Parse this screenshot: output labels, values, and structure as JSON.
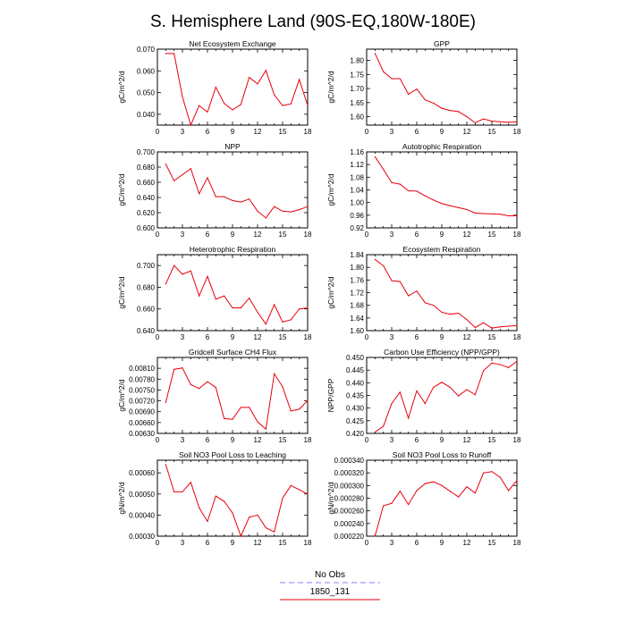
{
  "page": {
    "title": "S. Hemisphere Land (90S-EQ,180W-180E)"
  },
  "colors": {
    "obs": "#8080ff",
    "model": "#e8000b",
    "axis": "#000000"
  },
  "legend": {
    "items": [
      {
        "label": "No Obs",
        "style": "dashed"
      },
      {
        "label": "1850_131",
        "style": "solid"
      }
    ]
  },
  "chart_data": [
    {
      "type": "line",
      "title": "Net Ecosystem Exchange",
      "ylabel": "gC/m^2/d",
      "xlim": [
        0,
        18
      ],
      "ylim": [
        0.035,
        0.07
      ],
      "xticks": [
        0,
        3,
        6,
        9,
        12,
        15,
        18
      ],
      "yticks": [
        "0.040",
        "0.050",
        "0.060",
        "0.070"
      ],
      "series": [
        {
          "x": [
            1,
            2,
            3,
            4,
            5,
            6,
            7,
            8,
            9,
            10,
            11,
            12,
            13,
            14,
            15,
            16,
            17,
            18
          ],
          "values": [
            0.068,
            0.068,
            0.048,
            0.035,
            0.044,
            0.041,
            0.0525,
            0.045,
            0.042,
            0.0445,
            0.057,
            0.054,
            0.0602,
            0.049,
            0.044,
            0.0448,
            0.056,
            0.044
          ]
        }
      ]
    },
    {
      "type": "line",
      "title": "GPP",
      "ylabel": "gC/m^2/d",
      "xlim": [
        0,
        18
      ],
      "ylim": [
        1.57,
        1.84
      ],
      "xticks": [
        0,
        3,
        6,
        9,
        12,
        15,
        18
      ],
      "yticks": [
        "1.60",
        "1.65",
        "1.70",
        "1.75",
        "1.80"
      ],
      "series": [
        {
          "x": [
            1,
            2,
            3,
            4,
            5,
            6,
            7,
            8,
            9,
            10,
            11,
            12,
            13,
            14,
            15,
            16,
            17,
            18
          ],
          "values": [
            1.825,
            1.76,
            1.735,
            1.735,
            1.68,
            1.698,
            1.66,
            1.648,
            1.63,
            1.622,
            1.618,
            1.6,
            1.578,
            1.592,
            1.584,
            1.582,
            1.58,
            1.582
          ]
        }
      ]
    },
    {
      "type": "line",
      "title": "NPP",
      "ylabel": "gC/m^2/d",
      "xlim": [
        0,
        18
      ],
      "ylim": [
        0.6,
        0.7
      ],
      "xticks": [
        0,
        3,
        6,
        9,
        12,
        15,
        18
      ],
      "yticks": [
        "0.600",
        "0.620",
        "0.640",
        "0.660",
        "0.680",
        "0.700"
      ],
      "series": [
        {
          "x": [
            1,
            2,
            3,
            4,
            5,
            6,
            7,
            8,
            9,
            10,
            11,
            12,
            13,
            14,
            15,
            16,
            17,
            18
          ],
          "values": [
            0.684,
            0.662,
            0.67,
            0.678,
            0.645,
            0.666,
            0.641,
            0.641,
            0.636,
            0.634,
            0.638,
            0.622,
            0.613,
            0.628,
            0.622,
            0.621,
            0.624,
            0.628
          ]
        }
      ]
    },
    {
      "type": "line",
      "title": "Autotrophic Respiration",
      "ylabel": "gC/m^2/d",
      "xlim": [
        0,
        18
      ],
      "ylim": [
        0.92,
        1.16
      ],
      "xticks": [
        0,
        3,
        6,
        9,
        12,
        15,
        18
      ],
      "yticks": [
        "0.92",
        "0.96",
        "1.00",
        "1.04",
        "1.08",
        "1.12",
        "1.16"
      ],
      "series": [
        {
          "x": [
            1,
            2,
            3,
            4,
            5,
            6,
            7,
            8,
            9,
            10,
            11,
            12,
            13,
            14,
            15,
            16,
            17,
            18
          ],
          "values": [
            1.145,
            1.105,
            1.063,
            1.058,
            1.037,
            1.036,
            1.021,
            1.008,
            0.997,
            0.99,
            0.984,
            0.978,
            0.967,
            0.965,
            0.964,
            0.963,
            0.958,
            0.958
          ]
        }
      ]
    },
    {
      "type": "line",
      "title": "Heterotrophic Respiration",
      "ylabel": "gC/m^2/d",
      "xlim": [
        0,
        18
      ],
      "ylim": [
        0.64,
        0.71
      ],
      "xticks": [
        0,
        3,
        6,
        9,
        12,
        15,
        18
      ],
      "yticks": [
        "0.640",
        "0.660",
        "0.680",
        "0.700"
      ],
      "series": [
        {
          "x": [
            1,
            2,
            3,
            4,
            5,
            6,
            7,
            8,
            9,
            10,
            11,
            12,
            13,
            14,
            15,
            16,
            17,
            18
          ],
          "values": [
            0.683,
            0.7,
            0.692,
            0.695,
            0.672,
            0.69,
            0.669,
            0.672,
            0.661,
            0.661,
            0.67,
            0.657,
            0.646,
            0.664,
            0.648,
            0.65,
            0.66,
            0.661
          ]
        }
      ]
    },
    {
      "type": "line",
      "title": "Ecosystem Respiration",
      "ylabel": "gC/m^2/d",
      "xlim": [
        0,
        18
      ],
      "ylim": [
        1.6,
        1.84
      ],
      "xticks": [
        0,
        3,
        6,
        9,
        12,
        15,
        18
      ],
      "yticks": [
        "1.60",
        "1.64",
        "1.68",
        "1.72",
        "1.76",
        "1.80",
        "1.84"
      ],
      "series": [
        {
          "x": [
            1,
            2,
            3,
            4,
            5,
            6,
            7,
            8,
            9,
            10,
            11,
            12,
            13,
            14,
            15,
            16,
            17,
            18
          ],
          "values": [
            1.825,
            1.805,
            1.758,
            1.755,
            1.71,
            1.725,
            1.688,
            1.68,
            1.658,
            1.652,
            1.655,
            1.635,
            1.61,
            1.625,
            1.608,
            1.612,
            1.614,
            1.616
          ]
        }
      ]
    },
    {
      "type": "line",
      "title": "Gridcell Surface CH4 Flux",
      "ylabel": "gC/m^2/d",
      "xlim": [
        0,
        18
      ],
      "ylim": [
        0.0063,
        0.0084
      ],
      "xticks": [
        0,
        3,
        6,
        9,
        12,
        15,
        18
      ],
      "yticks": [
        "0.00630",
        "0.00660",
        "0.00690",
        "0.00720",
        "0.00750",
        "0.00780",
        "0.00810"
      ],
      "series": [
        {
          "x": [
            1,
            2,
            3,
            4,
            5,
            6,
            7,
            8,
            9,
            10,
            11,
            12,
            13,
            14,
            15,
            16,
            17,
            18
          ],
          "values": [
            0.00716,
            0.00807,
            0.00811,
            0.00765,
            0.00754,
            0.00773,
            0.00757,
            0.00671,
            0.00669,
            0.00702,
            0.00702,
            0.00662,
            0.00642,
            0.00795,
            0.00759,
            0.00692,
            0.00697,
            0.00721
          ]
        }
      ]
    },
    {
      "type": "line",
      "title": "Carbon Use Efficiency (NPP/GPP)",
      "ylabel": "NPP/GPP",
      "xlim": [
        0,
        18
      ],
      "ylim": [
        0.42,
        0.45
      ],
      "xticks": [
        0,
        3,
        6,
        9,
        12,
        15,
        18
      ],
      "yticks": [
        "0.420",
        "0.425",
        "0.430",
        "0.435",
        "0.440",
        "0.445",
        "0.450"
      ],
      "series": [
        {
          "x": [
            1,
            2,
            3,
            4,
            5,
            6,
            7,
            8,
            9,
            10,
            11,
            12,
            13,
            14,
            15,
            16,
            17,
            18
          ],
          "values": [
            0.4205,
            0.4228,
            0.4318,
            0.4363,
            0.426,
            0.4368,
            0.4318,
            0.4382,
            0.4402,
            0.4382,
            0.4348,
            0.4373,
            0.4353,
            0.4448,
            0.4478,
            0.4472,
            0.446,
            0.4485
          ]
        }
      ]
    },
    {
      "type": "line",
      "title": "Soil NO3 Pool Loss to Leaching",
      "ylabel": "gN/m^2/d",
      "xlim": [
        0,
        18
      ],
      "ylim": [
        0.0003,
        0.00066
      ],
      "xticks": [
        0,
        3,
        6,
        9,
        12,
        15,
        18
      ],
      "yticks": [
        "0.00030",
        "0.00040",
        "0.00050",
        "0.00060"
      ],
      "series": [
        {
          "x": [
            1,
            2,
            3,
            4,
            5,
            6,
            7,
            8,
            9,
            10,
            11,
            12,
            13,
            14,
            15,
            16,
            17,
            18
          ],
          "values": [
            0.00064,
            0.00051,
            0.00051,
            0.000555,
            0.000435,
            0.00037,
            0.00049,
            0.000465,
            0.00041,
            0.0003,
            0.00039,
            0.0004,
            0.00034,
            0.00032,
            0.00048,
            0.00054,
            0.00052,
            0.0005
          ]
        }
      ]
    },
    {
      "type": "line",
      "title": "Soil NO3 Pool Loss to Runoff",
      "ylabel": "gN/m^2/d",
      "xlim": [
        0,
        18
      ],
      "ylim": [
        0.00022,
        0.00034
      ],
      "xticks": [
        0,
        3,
        6,
        9,
        12,
        15,
        18
      ],
      "yticks": [
        "0.000220",
        "0.000240",
        "0.000260",
        "0.000280",
        "0.000300",
        "0.000320",
        "0.000340"
      ],
      "series": [
        {
          "x": [
            1,
            2,
            3,
            4,
            5,
            6,
            7,
            8,
            9,
            10,
            11,
            12,
            13,
            14,
            15,
            16,
            17,
            18
          ],
          "values": [
            0.00022,
            0.000268,
            0.000272,
            0.000291,
            0.00027,
            0.000292,
            0.000303,
            0.000306,
            0.0003,
            0.000291,
            0.000282,
            0.000298,
            0.000288,
            0.00032,
            0.000322,
            0.000313,
            0.000292,
            0.000308
          ]
        }
      ]
    }
  ]
}
